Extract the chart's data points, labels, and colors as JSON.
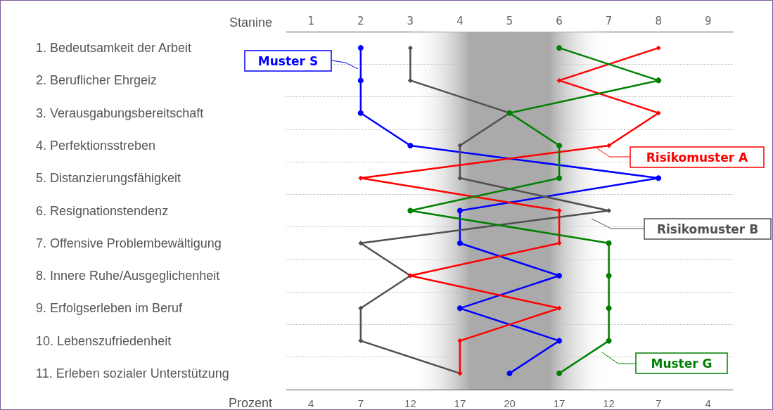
{
  "chart_data": {
    "type": "line",
    "orientation": "horizontal",
    "categories": [
      "1. Bedeutsamkeit der Arbeit",
      "2. Beruflicher Ehrgeiz",
      "3. Verausgabungsbereitschaft",
      "4. Perfektionsstreben",
      "5. Distanzierungsfähigkeit",
      "6. Resignationstendenz",
      "7. Offensive Problembewältigung",
      "8. Innere Ruhe/Ausgeglichenheit",
      "9. Erfolgserleben im Beruf",
      "10. Lebenszufriedenheit",
      "11. Erleben sozialer Unterstützung"
    ],
    "series": [
      {
        "name": "Muster S",
        "color": "#0000ff",
        "marker": "circle",
        "values": [
          2,
          2,
          2,
          3,
          8,
          4,
          4,
          6,
          4,
          6,
          5
        ]
      },
      {
        "name": "Risikomuster B",
        "color": "#505050",
        "marker": "diamond",
        "values": [
          3,
          3,
          5,
          4,
          4,
          7,
          2,
          3,
          2,
          2,
          4
        ]
      },
      {
        "name": "Risikomuster A",
        "color": "#ff0000",
        "marker": "diamond",
        "values": [
          8,
          6,
          8,
          7,
          2,
          6,
          6,
          3,
          6,
          4,
          4
        ]
      },
      {
        "name": "Muster G",
        "color": "#008000",
        "marker": "circle",
        "values": [
          6,
          8,
          5,
          6,
          6,
          3,
          7,
          7,
          7,
          7,
          6
        ]
      }
    ],
    "xlabel": "Stanine",
    "xlim": [
      0.5,
      9.5
    ],
    "xticks": [
      1,
      2,
      3,
      4,
      5,
      6,
      7,
      8,
      9
    ],
    "annotations": [
      "Prozent",
      "4",
      "7",
      "12",
      "17",
      "20",
      "17",
      "12",
      "7",
      "4"
    ],
    "bands": [
      {
        "axis": "x",
        "from": 3,
        "to": 7,
        "color": "#aaaaaa"
      }
    ],
    "grid": "y",
    "line_style": "solid",
    "legend": "right"
  }
}
